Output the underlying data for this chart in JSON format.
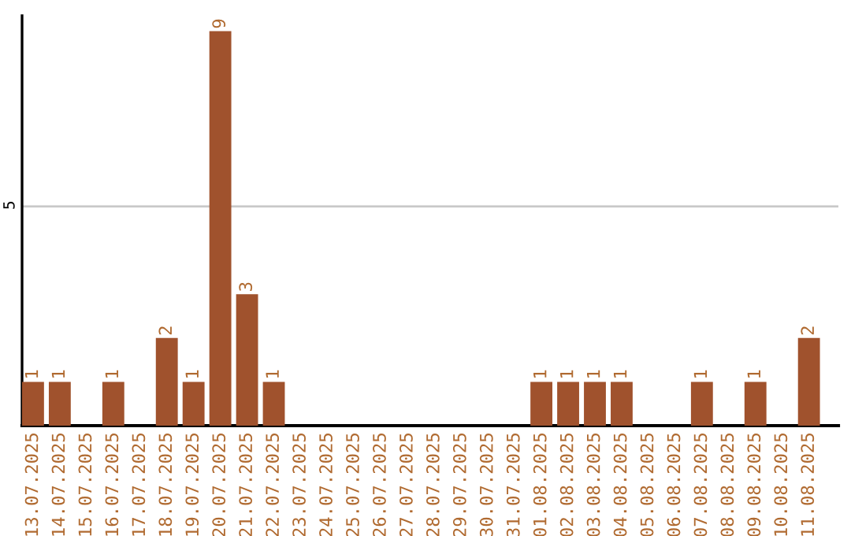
{
  "chart_data": {
    "type": "bar",
    "categories": [
      "13.07.2025",
      "14.07.2025",
      "15.07.2025",
      "16.07.2025",
      "17.07.2025",
      "18.07.2025",
      "19.07.2025",
      "20.07.2025",
      "21.07.2025",
      "22.07.2025",
      "23.07.2025",
      "24.07.2025",
      "25.07.2025",
      "26.07.2025",
      "27.07.2025",
      "28.07.2025",
      "29.07.2025",
      "30.07.2025",
      "31.07.2025",
      "01.08.2025",
      "02.08.2025",
      "03.08.2025",
      "04.08.2025",
      "05.08.2025",
      "06.08.2025",
      "07.08.2025",
      "08.08.2025",
      "09.08.2025",
      "10.08.2025",
      "11.08.2025"
    ],
    "values": [
      1,
      1,
      0,
      1,
      0,
      2,
      1,
      9,
      3,
      1,
      0,
      0,
      0,
      0,
      0,
      0,
      0,
      0,
      0,
      1,
      1,
      1,
      1,
      0,
      0,
      1,
      0,
      1,
      0,
      2
    ],
    "value_labels": [
      "1",
      "1",
      null,
      "1",
      null,
      "2",
      "1",
      "9",
      "3",
      "1",
      null,
      null,
      null,
      null,
      null,
      null,
      null,
      null,
      null,
      "1",
      "1",
      "1",
      "1",
      null,
      null,
      "1",
      null,
      "1",
      null,
      "2"
    ],
    "color": "#a0522d",
    "ylim": [
      0,
      9.35
    ],
    "yticks": [
      5
    ],
    "grid": "y",
    "legend": false
  }
}
